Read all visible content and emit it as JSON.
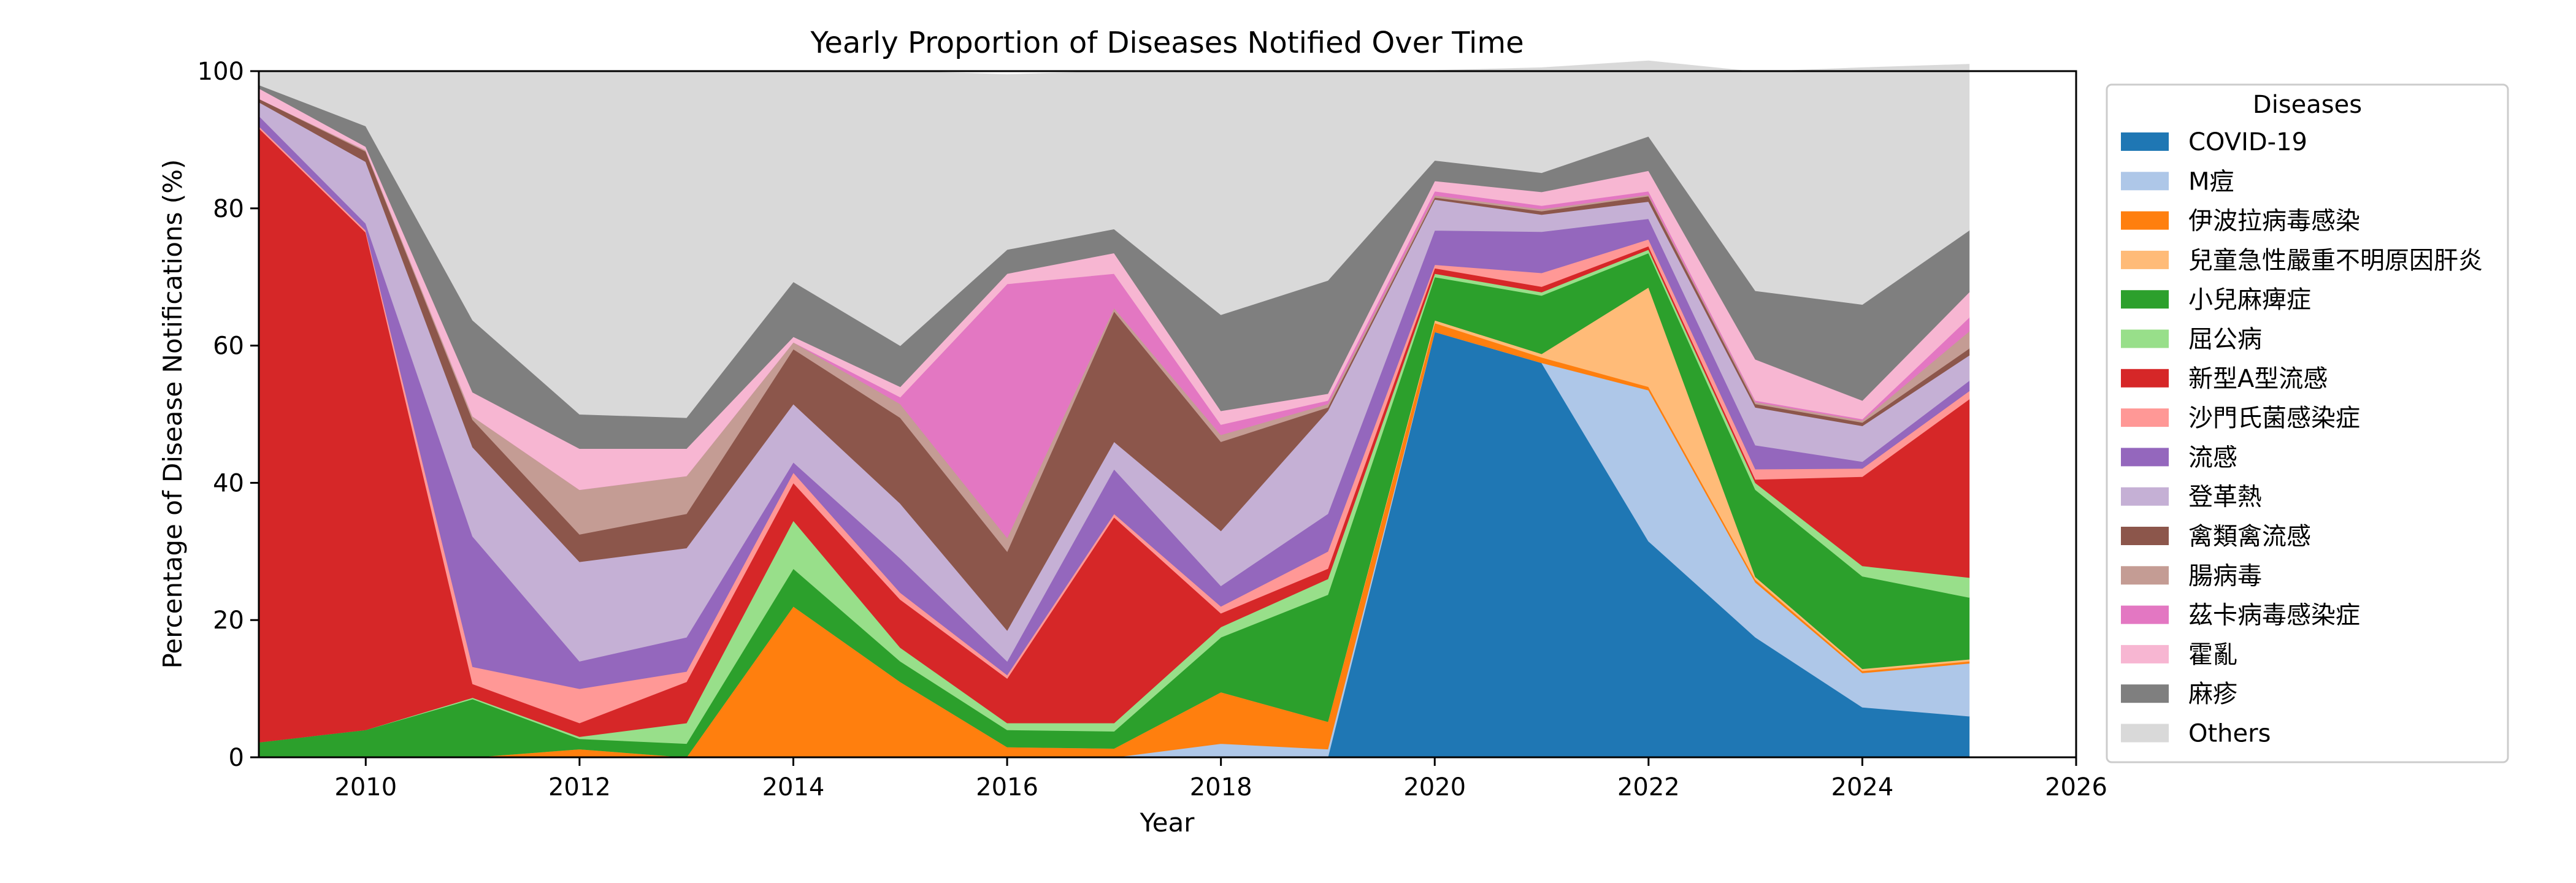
{
  "chart_data": {
    "type": "area",
    "stacked": true,
    "title": "Yearly Proportion of Diseases Notified Over Time",
    "xlabel": "Year",
    "ylabel": "Percentage of Disease Notifications (%)",
    "xlim": [
      2009,
      2026
    ],
    "ylim": [
      0,
      100
    ],
    "xticks": [
      2010,
      2012,
      2014,
      2016,
      2018,
      2020,
      2022,
      2024,
      2026
    ],
    "yticks": [
      0,
      20,
      40,
      60,
      80,
      100
    ],
    "legend_title": "Diseases",
    "legend_position": "right",
    "x": [
      2009,
      2010,
      2011,
      2012,
      2013,
      2014,
      2015,
      2016,
      2017,
      2018,
      2019,
      2020,
      2021,
      2022,
      2023,
      2024,
      2025
    ],
    "series": [
      {
        "name": "COVID-19",
        "color": "#1f77b4",
        "values": [
          0,
          0,
          0,
          0,
          0,
          0,
          0,
          0,
          0,
          0,
          0,
          62,
          57.5,
          31.5,
          17.5,
          7.3,
          6
        ]
      },
      {
        "name": "M痘",
        "color": "#aec7e8",
        "values": [
          0,
          0,
          0,
          0,
          0,
          0,
          0,
          0,
          0,
          2,
          1.2,
          0,
          0,
          22,
          8,
          5,
          7.7
        ]
      },
      {
        "name": "伊波拉病毒感染",
        "color": "#ff7f0e",
        "values": [
          0,
          0,
          0,
          1.2,
          0,
          22,
          11,
          1.5,
          1.3,
          7.5,
          4,
          1.3,
          0.8,
          0.5,
          0.4,
          0.3,
          0.3
        ]
      },
      {
        "name": "兒童急性嚴重不明原因肝炎",
        "color": "#ffbb78",
        "values": [
          0,
          0,
          0,
          0,
          0,
          0,
          0,
          0,
          0,
          0,
          0,
          0.4,
          0.5,
          14.5,
          0.4,
          0.3,
          0.3
        ]
      },
      {
        "name": "小兒麻痺症",
        "color": "#2ca02c",
        "values": [
          2.2,
          4,
          8.5,
          1.5,
          2,
          5.5,
          3,
          2.5,
          2.5,
          8,
          18.5,
          6.3,
          8.5,
          5,
          12.7,
          13.5,
          9
        ]
      },
      {
        "name": "屈公病",
        "color": "#98df8a",
        "values": [
          0,
          0,
          0.2,
          0.3,
          3,
          7,
          2,
          1,
          1.2,
          1.5,
          2.3,
          0.5,
          0.5,
          0.5,
          1,
          1.5,
          2.9
        ]
      },
      {
        "name": "新型A型流感",
        "color": "#d62728",
        "values": [
          89.5,
          72.5,
          2,
          2,
          6,
          5.5,
          7,
          6.5,
          30,
          2,
          1.5,
          0.8,
          0.8,
          0.5,
          0.5,
          13,
          26
        ]
      },
      {
        "name": "沙門氏菌感染症",
        "color": "#ff9896",
        "values": [
          0.3,
          0.3,
          2.5,
          5,
          1.5,
          1.5,
          1,
          0.5,
          0.5,
          1,
          2.5,
          0.5,
          2,
          1,
          1.5,
          1.2,
          1.2
        ]
      },
      {
        "name": "流感",
        "color": "#9467bd",
        "values": [
          1.5,
          1,
          19,
          4,
          5,
          1.5,
          5,
          2,
          6.5,
          3,
          5.5,
          5,
          6,
          3,
          3.5,
          1,
          1.5
        ]
      },
      {
        "name": "登革熱",
        "color": "#c5b0d5",
        "values": [
          2,
          9,
          13,
          14.5,
          13,
          8.5,
          8,
          4.5,
          4,
          8,
          15,
          4.5,
          2.5,
          2.5,
          5.5,
          5.2,
          3.7
        ]
      },
      {
        "name": "禽類禽流感",
        "color": "#8c564b",
        "values": [
          0.5,
          1.5,
          4,
          4,
          5,
          8,
          12.5,
          11.5,
          19,
          13,
          0.5,
          0.3,
          0.5,
          0.8,
          0.5,
          0.5,
          1
        ]
      },
      {
        "name": "腸病毒",
        "color": "#c49c94",
        "values": [
          0,
          0.2,
          0.5,
          6.5,
          5.5,
          1,
          2,
          2,
          0.5,
          1,
          0.5,
          0.3,
          0.3,
          0.2,
          0.3,
          0.3,
          2.5
        ]
      },
      {
        "name": "茲卡病毒感染症",
        "color": "#e377c2",
        "values": [
          0,
          0,
          0,
          0,
          0,
          0,
          1,
          37,
          5,
          1.5,
          0.5,
          0.6,
          0.5,
          0.5,
          0.2,
          0.2,
          2
        ]
      },
      {
        "name": "霍亂",
        "color": "#f7b6d2",
        "values": [
          1.5,
          0.5,
          3.5,
          6,
          4,
          0.8,
          1.5,
          1.5,
          3,
          2,
          1,
          1.5,
          2,
          3,
          6,
          2.7,
          3.7
        ]
      },
      {
        "name": "麻疹",
        "color": "#7f7f7f",
        "values": [
          0.5,
          3,
          10.5,
          5,
          4.5,
          8,
          6,
          3.5,
          3.5,
          14,
          16.5,
          3,
          2.8,
          5,
          10,
          14,
          9
        ]
      },
      {
        "name": "Others",
        "color": "#d9d9d9",
        "values": [
          2,
          8,
          36.3,
          50,
          50.5,
          30.7,
          40,
          25.5,
          23,
          35.5,
          30.5,
          13.1,
          15.3,
          11,
          31.9,
          34.5,
          24.2
        ]
      }
    ]
  }
}
